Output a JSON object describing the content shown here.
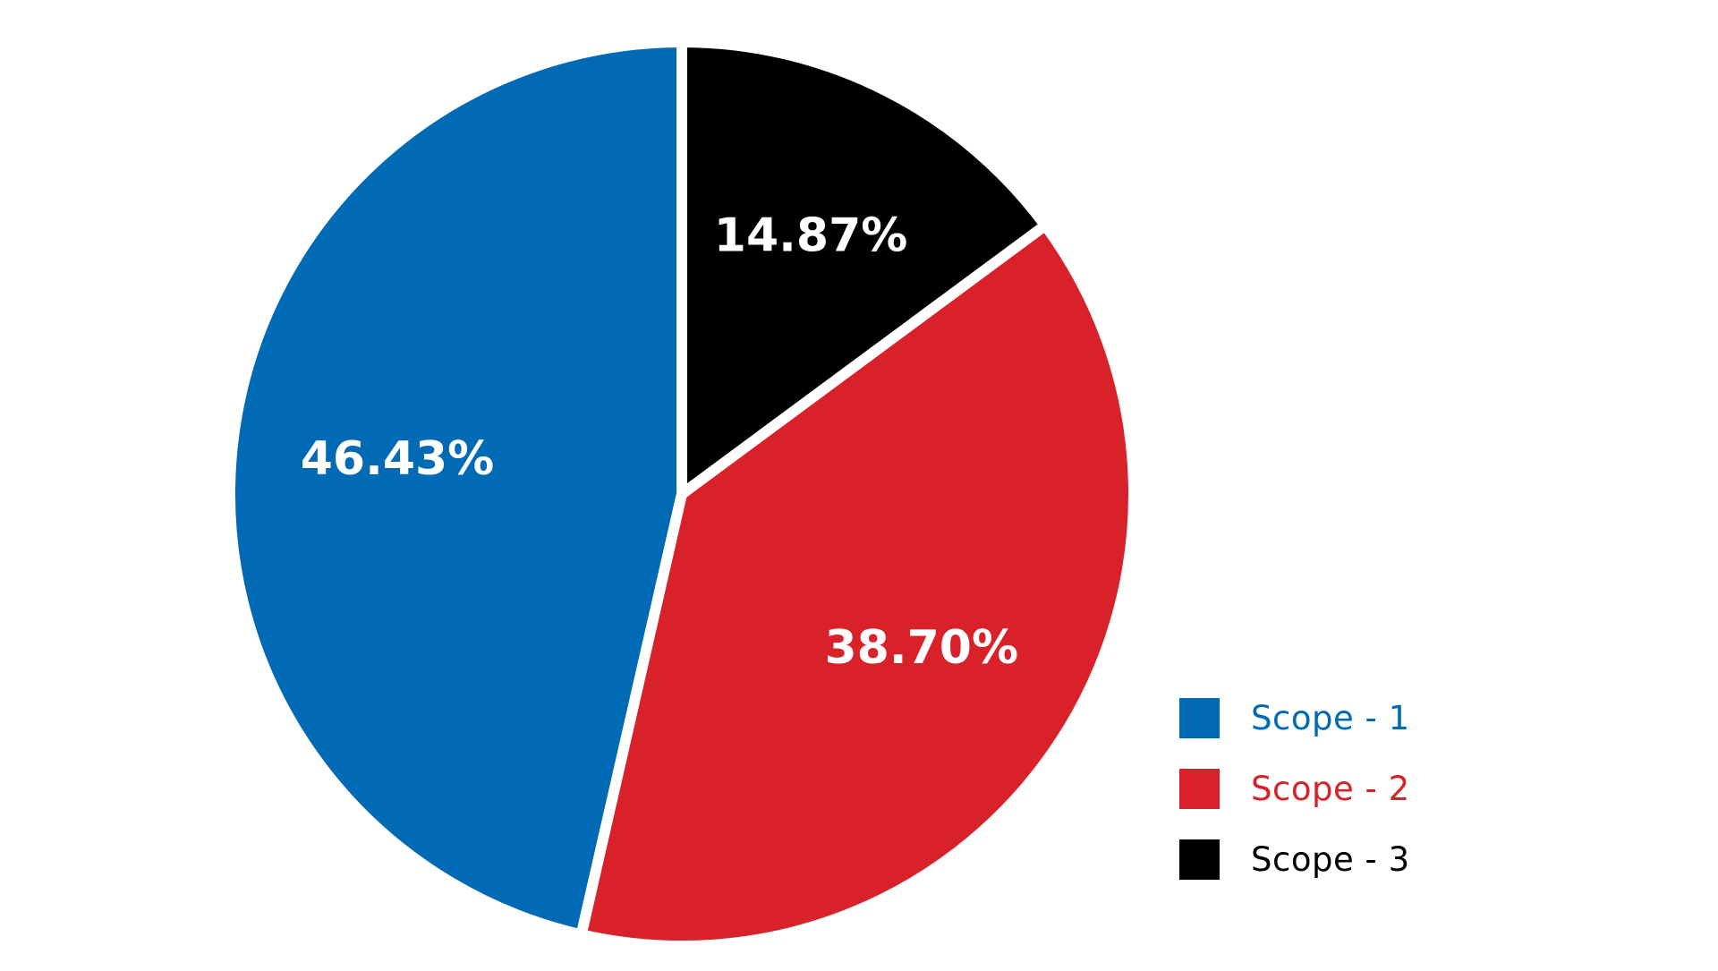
{
  "chart_data": {
    "type": "pie",
    "title": "",
    "slices": [
      {
        "label": "Scope - 1",
        "value_label": "46.43%",
        "value": 46.43,
        "color": "#006BB4"
      },
      {
        "label": "Scope - 2",
        "value_label": "38.70%",
        "value": 38.7,
        "color": "#D82129"
      },
      {
        "label": "Scope - 3",
        "value_label": "14.87%",
        "value": 14.87,
        "color": "#000000"
      }
    ],
    "start_angle_deg": 0,
    "direction": "counterclockwise",
    "legend_position": "bottom-right",
    "separator_color": "#FFFFFF"
  }
}
